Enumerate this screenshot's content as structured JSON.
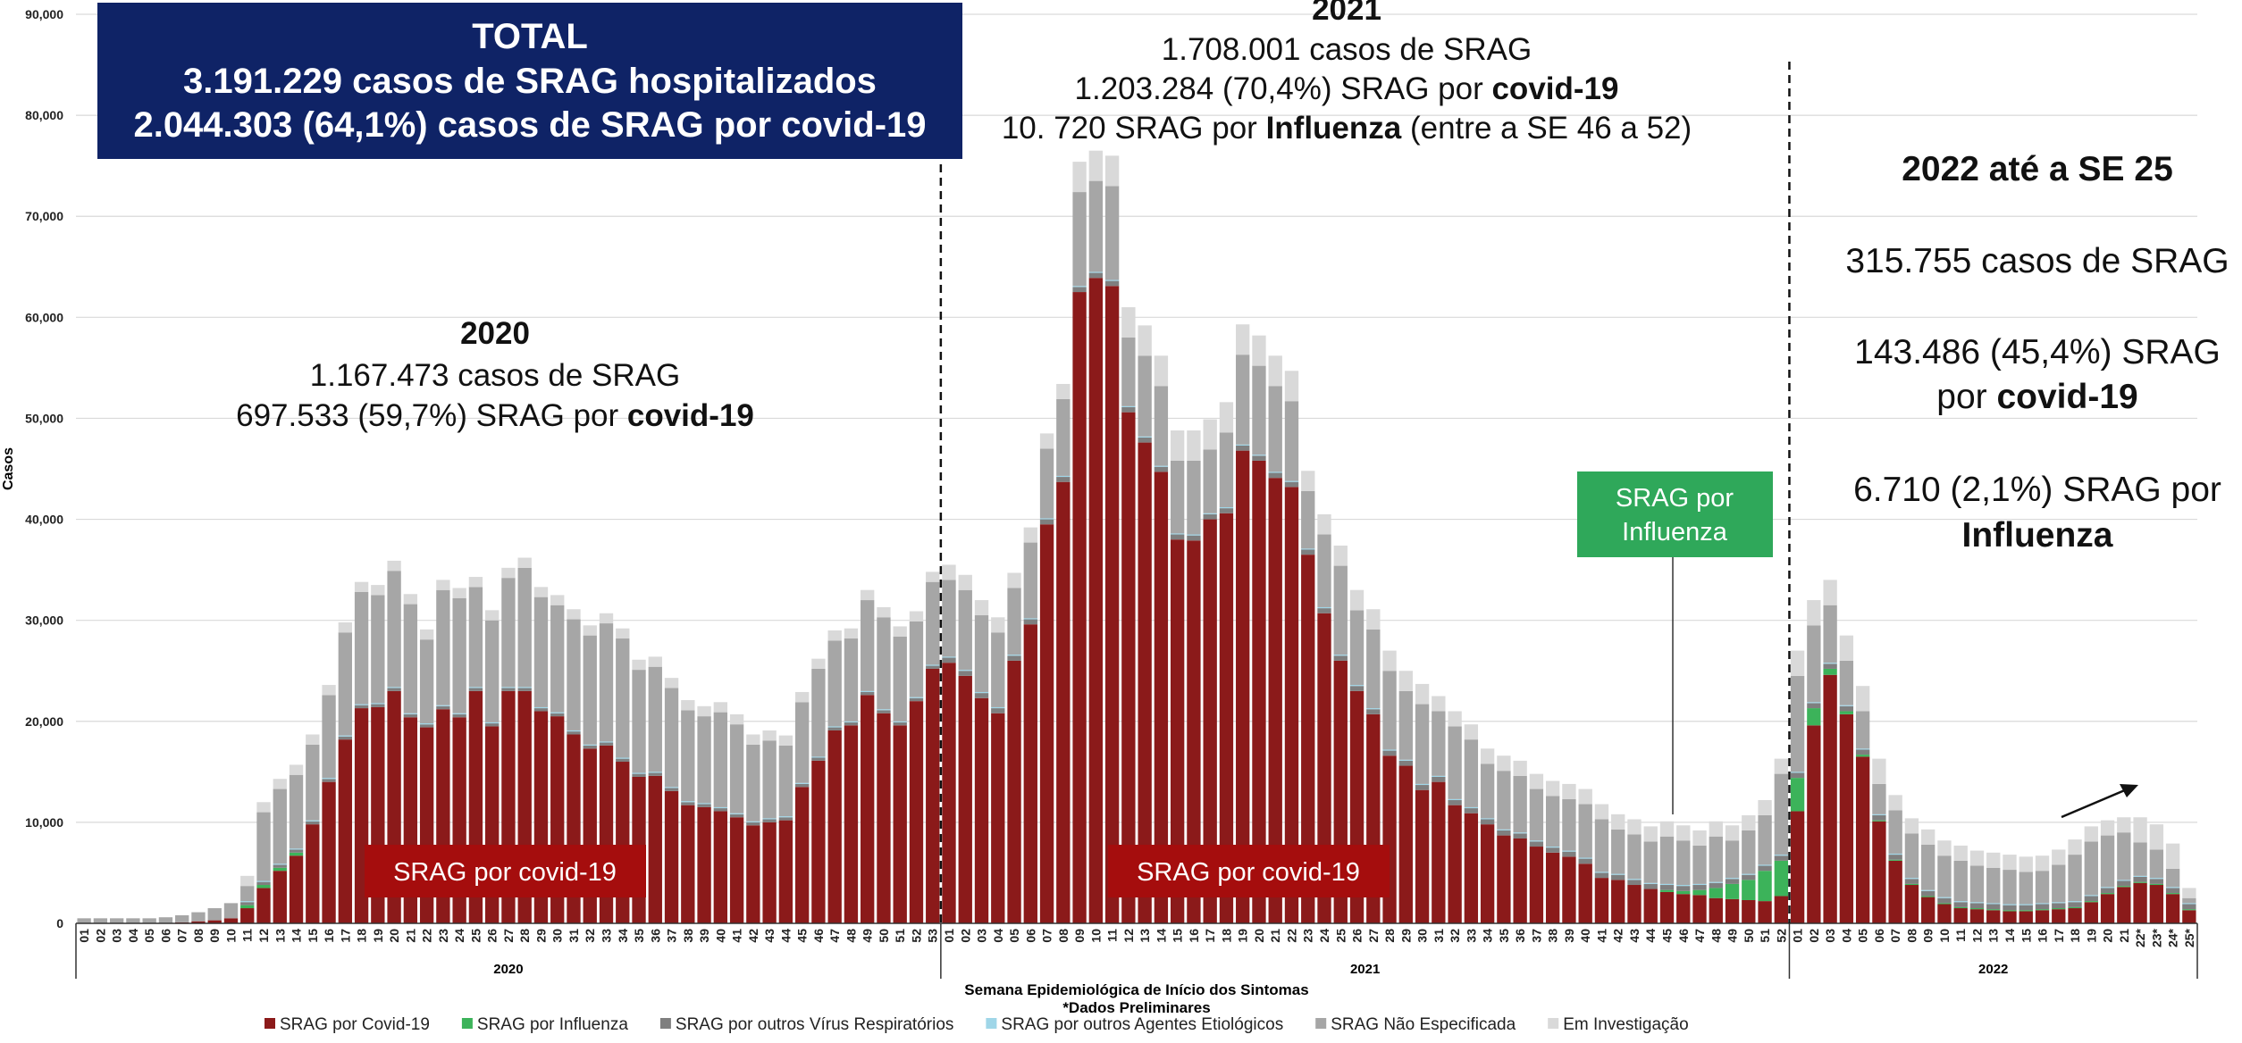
{
  "chart_data": {
    "type": "stacked_bar",
    "y_label": "Casos",
    "x_label": "Semana Epidemiológica de Início dos Sintomas",
    "note": "*Dados Preliminares",
    "x_groups": [
      "2020",
      "2021",
      "2022"
    ],
    "categories": [
      "01",
      "02",
      "03",
      "04",
      "05",
      "06",
      "07",
      "08",
      "09",
      "10",
      "11",
      "12",
      "13",
      "14",
      "15",
      "16",
      "17",
      "18",
      "19",
      "20",
      "21",
      "22",
      "23",
      "24",
      "25",
      "26",
      "27",
      "28",
      "29",
      "30",
      "31",
      "32",
      "33",
      "34",
      "35",
      "36",
      "37",
      "38",
      "39",
      "40",
      "41",
      "42",
      "43",
      "44",
      "45",
      "46",
      "47",
      "48",
      "49",
      "50",
      "51",
      "52",
      "53",
      "01",
      "02",
      "03",
      "04",
      "05",
      "06",
      "07",
      "08",
      "09",
      "10",
      "11",
      "12",
      "13",
      "14",
      "15",
      "16",
      "17",
      "18",
      "19",
      "20",
      "21",
      "22",
      "23",
      "24",
      "25",
      "26",
      "27",
      "28",
      "29",
      "30",
      "31",
      "32",
      "33",
      "34",
      "35",
      "36",
      "37",
      "38",
      "39",
      "40",
      "41",
      "42",
      "43",
      "44",
      "45",
      "46",
      "47",
      "48",
      "49",
      "50",
      "51",
      "52",
      "01",
      "02",
      "03",
      "04",
      "05",
      "06",
      "07",
      "08",
      "09",
      "10",
      "11",
      "12",
      "13",
      "14",
      "15",
      "16",
      "17",
      "18",
      "19",
      "20",
      "21",
      "22*",
      "23*",
      "24*",
      "25*"
    ],
    "ylim": [
      0,
      90000
    ],
    "yticks": [
      0,
      {
        "value": 10000,
        "label": "10,000"
      },
      {
        "value": 20000,
        "label": "20,000"
      },
      {
        "value": 30000,
        "label": "30,000"
      },
      {
        "value": 40000,
        "label": "40,000"
      },
      {
        "value": 50000,
        "label": "50,000"
      },
      {
        "value": 60000,
        "label": "60,000"
      },
      {
        "value": 70000,
        "label": "70,000"
      },
      {
        "value": 80000,
        "label": "80,000"
      },
      {
        "value": 90000,
        "label": "90,000"
      }
    ],
    "grid": true,
    "series": [
      {
        "name": "SRAG por Covid-19",
        "color": "#8b1a1a",
        "values": [
          0,
          0,
          0,
          0,
          0,
          0,
          100,
          200,
          300,
          500,
          1500,
          3500,
          5200,
          6700,
          9800,
          14000,
          18200,
          21300,
          21400,
          23000,
          20400,
          19400,
          21200,
          20400,
          23000,
          19500,
          23000,
          23000,
          21000,
          20500,
          18700,
          17300,
          17600,
          16000,
          14500,
          14600,
          13100,
          11700,
          11500,
          11100,
          10500,
          9700,
          10000,
          10200,
          13500,
          16100,
          19100,
          19600,
          22600,
          20800,
          19600,
          22000,
          25200,
          25800,
          24500,
          22300,
          20800,
          26000,
          29600,
          39500,
          43700,
          62500,
          63900,
          63100,
          50600,
          47600,
          44700,
          38000,
          37900,
          40000,
          40600,
          46800,
          45800,
          44100,
          43200,
          36500,
          30700,
          26000,
          23000,
          20700,
          16600,
          15600,
          13200,
          14000,
          11700,
          10900,
          9800,
          8700,
          8400,
          7600,
          7000,
          6600,
          5900,
          4500,
          4300,
          3800,
          3400,
          3100,
          2900,
          2800,
          2500,
          2400,
          2300,
          2200,
          2700,
          11100,
          19600,
          24600,
          20700,
          16500,
          10100,
          6200,
          3800,
          2600,
          1900,
          1500,
          1400,
          1300,
          1200,
          1200,
          1300,
          1400,
          1500,
          2100,
          2900,
          3600,
          4000,
          3800,
          2900,
          1300
        ]
      },
      {
        "name": "SRAG por Influenza",
        "color": "#3cb35a",
        "values": [
          0,
          0,
          0,
          0,
          0,
          0,
          0,
          0,
          0,
          0,
          300,
          300,
          300,
          300,
          0,
          0,
          0,
          0,
          0,
          0,
          0,
          0,
          0,
          0,
          0,
          0,
          0,
          0,
          0,
          0,
          0,
          0,
          0,
          0,
          0,
          0,
          0,
          0,
          0,
          0,
          0,
          0,
          0,
          0,
          0,
          0,
          0,
          0,
          0,
          0,
          0,
          0,
          0,
          0,
          0,
          0,
          0,
          0,
          0,
          0,
          0,
          0,
          0,
          0,
          0,
          0,
          0,
          0,
          0,
          0,
          0,
          0,
          0,
          0,
          0,
          0,
          0,
          0,
          0,
          0,
          0,
          0,
          0,
          0,
          0,
          0,
          0,
          0,
          0,
          0,
          0,
          0,
          0,
          0,
          0,
          0,
          0,
          200,
          300,
          500,
          1000,
          1500,
          2000,
          3000,
          3500,
          3300,
          1700,
          600,
          300,
          200,
          100,
          100,
          100,
          100,
          100,
          100,
          100,
          100,
          100,
          100,
          100,
          100,
          100,
          100,
          100,
          100,
          100,
          100,
          100,
          100
        ]
      },
      {
        "name": "SRAG por outros Vírus Respiratórios",
        "color": "#7f7f7f",
        "values": [
          0,
          0,
          0,
          0,
          0,
          0,
          0,
          0,
          0,
          0,
          300,
          300,
          300,
          300,
          300,
          300,
          300,
          300,
          300,
          300,
          300,
          300,
          300,
          300,
          300,
          300,
          300,
          300,
          300,
          300,
          300,
          300,
          300,
          300,
          300,
          300,
          300,
          300,
          300,
          300,
          300,
          300,
          300,
          300,
          300,
          300,
          300,
          300,
          300,
          300,
          300,
          300,
          300,
          500,
          500,
          500,
          500,
          500,
          500,
          500,
          500,
          500,
          500,
          500,
          500,
          500,
          500,
          500,
          500,
          500,
          500,
          500,
          500,
          500,
          500,
          500,
          500,
          500,
          500,
          500,
          500,
          500,
          500,
          500,
          500,
          500,
          500,
          500,
          500,
          500,
          500,
          500,
          500,
          500,
          500,
          500,
          500,
          500,
          500,
          500,
          500,
          500,
          500,
          500,
          500,
          500,
          500,
          500,
          500,
          500,
          500,
          500,
          500,
          500,
          500,
          500,
          500,
          500,
          500,
          500,
          500,
          500,
          500,
          500,
          500,
          500,
          500,
          500,
          500,
          500
        ]
      },
      {
        "name": "SRAG por outros Agentes Etiológicos",
        "color": "#9fd6e8",
        "values": [
          0,
          0,
          0,
          0,
          0,
          0,
          0,
          0,
          0,
          0,
          100,
          100,
          100,
          100,
          100,
          100,
          100,
          100,
          100,
          100,
          100,
          100,
          100,
          100,
          100,
          100,
          100,
          100,
          100,
          100,
          100,
          100,
          100,
          100,
          100,
          100,
          100,
          100,
          100,
          100,
          100,
          100,
          100,
          100,
          100,
          100,
          100,
          100,
          100,
          100,
          100,
          100,
          100,
          100,
          100,
          100,
          100,
          100,
          100,
          100,
          100,
          100,
          100,
          100,
          100,
          100,
          100,
          100,
          100,
          100,
          100,
          100,
          100,
          100,
          100,
          100,
          100,
          100,
          100,
          100,
          100,
          100,
          100,
          100,
          100,
          100,
          100,
          100,
          100,
          100,
          100,
          100,
          100,
          100,
          100,
          100,
          100,
          100,
          100,
          100,
          100,
          100,
          100,
          100,
          100,
          100,
          100,
          100,
          100,
          100,
          100,
          100,
          100,
          100,
          100,
          100,
          100,
          100,
          100,
          100,
          100,
          100,
          100,
          100,
          100,
          100,
          100,
          100,
          100,
          100
        ]
      },
      {
        "name": "SRAG Não Especificada",
        "color": "#a6a6a6",
        "values": [
          500,
          500,
          500,
          500,
          500,
          600,
          700,
          900,
          1200,
          1500,
          1500,
          6800,
          7400,
          7300,
          7500,
          8200,
          10200,
          11100,
          10700,
          11500,
          10800,
          8300,
          11400,
          11400,
          9900,
          10100,
          10800,
          11800,
          10900,
          10600,
          11000,
          10800,
          11700,
          11800,
          10200,
          10400,
          9800,
          9000,
          8600,
          9400,
          8800,
          7600,
          7700,
          7000,
          8000,
          8700,
          8500,
          8200,
          9000,
          9100,
          8400,
          7500,
          8200,
          7600,
          7900,
          7600,
          7400,
          6600,
          7500,
          6900,
          7600,
          9300,
          9000,
          9300,
          6800,
          8000,
          7900,
          7200,
          7300,
          6300,
          7400,
          8900,
          8800,
          8500,
          7900,
          5700,
          7200,
          8800,
          7400,
          7800,
          7800,
          6800,
          7900,
          6400,
          7200,
          6700,
          5400,
          5800,
          5600,
          5100,
          5000,
          5100,
          5300,
          5200,
          4400,
          4400,
          4100,
          4700,
          4400,
          3800,
          4500,
          3700,
          4300,
          4900,
          8000,
          9500,
          7600,
          5700,
          4400,
          3700,
          3000,
          4300,
          4400,
          4500,
          4100,
          4000,
          3600,
          3500,
          3400,
          3200,
          3200,
          3700,
          4600,
          5300,
          5100,
          4700,
          3300,
          2800,
          1800,
          500
        ]
      },
      {
        "name": "Em Investigação",
        "color": "#d9d9d9",
        "values": [
          0,
          0,
          0,
          0,
          0,
          0,
          0,
          0,
          0,
          0,
          1000,
          1000,
          1000,
          1000,
          1000,
          1000,
          1000,
          1000,
          1000,
          1000,
          1000,
          1000,
          1000,
          1000,
          1000,
          1000,
          1000,
          1000,
          1000,
          1000,
          1000,
          1000,
          1000,
          1000,
          1000,
          1000,
          1000,
          1000,
          1000,
          1000,
          1000,
          1000,
          1000,
          1000,
          1000,
          1000,
          1000,
          1000,
          1000,
          1000,
          1000,
          1000,
          1000,
          1500,
          1500,
          1500,
          1500,
          1500,
          1500,
          1500,
          1500,
          3000,
          3000,
          3000,
          3000,
          3000,
          3000,
          3000,
          3000,
          3000,
          3000,
          3000,
          3000,
          3000,
          3000,
          2000,
          2000,
          2000,
          2000,
          2000,
          2000,
          2000,
          2000,
          1500,
          1500,
          1500,
          1500,
          1500,
          1500,
          1500,
          1500,
          1500,
          1500,
          1500,
          1500,
          1500,
          1500,
          1500,
          1500,
          1500,
          1500,
          1500,
          1500,
          1500,
          1500,
          2500,
          2500,
          2500,
          2500,
          2500,
          2500,
          1500,
          1500,
          1500,
          1500,
          1500,
          1500,
          1500,
          1500,
          1500,
          1500,
          1500,
          1500,
          1500,
          1500,
          1500,
          2500,
          2500,
          2500,
          1000
        ]
      }
    ],
    "annotations": {
      "total": [
        [
          {
            "text": "TOTAL"
          }
        ],
        [
          {
            "text": "3.191.229 casos de SRAG hospitalizados"
          }
        ],
        [
          {
            "text": "2.044.303 (64,1%) casos de SRAG por covid-19"
          }
        ]
      ],
      "y2021": [
        [
          {
            "text": "2021",
            "bold": true
          }
        ],
        [
          {
            "text": "1.708.001 casos de SRAG"
          }
        ],
        [
          {
            "text": "1.203.284 (70,4%) SRAG por "
          },
          {
            "text": "covid-19",
            "bold": true
          }
        ],
        [
          {
            "text": "10. 720 SRAG por "
          },
          {
            "text": "Influenza",
            "bold": true
          },
          {
            "text": " (entre a SE 46 a 52)"
          }
        ]
      ],
      "y2020": [
        [
          {
            "text": "2020",
            "bold": true
          }
        ],
        [
          {
            "text": "1.167.473 casos de SRAG"
          }
        ],
        [
          {
            "text": "697.533 (59,7%) SRAG por "
          },
          {
            "text": "covid-19",
            "bold": true
          }
        ]
      ],
      "y2022": [
        [
          {
            "text": "2022 até a SE 25",
            "bold": true
          }
        ],
        [
          {
            "text": "315.755 casos de SRAG"
          }
        ],
        [
          {
            "text": "143.486 (45,4%) SRAG"
          }
        ],
        [
          {
            "text": "por "
          },
          {
            "text": "covid-19",
            "bold": true
          }
        ],
        [
          {
            "text": "6.710 (2,1%) SRAG por"
          }
        ],
        [
          {
            "text": "Influenza",
            "bold": true
          }
        ]
      ],
      "covid_labels": [
        "SRAG por covid-19",
        "SRAG por covid-19"
      ],
      "influenza_label": [
        "SRAG por",
        "Influenza"
      ]
    }
  }
}
